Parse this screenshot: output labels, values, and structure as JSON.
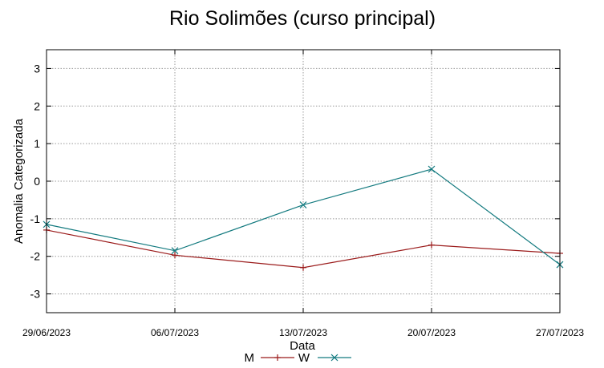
{
  "chart_data": {
    "type": "line",
    "title": "Rio Solimões (curso principal)",
    "xlabel": "Data",
    "ylabel": "Anomalia Categorizada",
    "x": [
      "29/06/2023",
      "06/07/2023",
      "13/07/2023",
      "20/07/2023",
      "27/07/2023"
    ],
    "ylim": [
      -3.5,
      3.5
    ],
    "yticks": [
      3,
      2,
      1,
      0,
      -1,
      -2,
      -3
    ],
    "grid": true,
    "legend_position": "bottom-center",
    "series": [
      {
        "name": "M",
        "values": [
          -1.3,
          -1.97,
          -2.3,
          -1.7,
          -1.92
        ],
        "color": "#9b1b1b",
        "marker": "plus"
      },
      {
        "name": "W",
        "values": [
          -1.15,
          -1.85,
          -0.63,
          0.32,
          -2.22
        ],
        "color": "#137a7f",
        "marker": "cross"
      }
    ]
  }
}
